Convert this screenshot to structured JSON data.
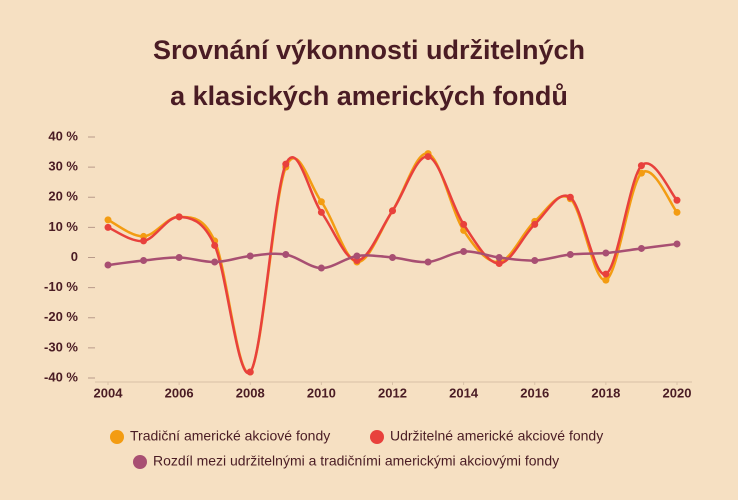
{
  "chart_data": {
    "type": "line",
    "title": [
      "Srovnání výkonnosti udržitelných",
      "a klasických amerických fondů"
    ],
    "x": [
      2004,
      2005,
      2006,
      2007,
      2008,
      2009,
      2010,
      2011,
      2012,
      2013,
      2014,
      2015,
      2016,
      2017,
      2018,
      2019,
      2020
    ],
    "xlim": [
      2004,
      2020
    ],
    "xticks": [
      2004,
      2006,
      2008,
      2010,
      2012,
      2014,
      2016,
      2018,
      2020
    ],
    "ylim": [
      -40,
      40
    ],
    "yticks": [
      {
        "value": -40,
        "label": "-40 %"
      },
      {
        "value": -30,
        "label": "-30 %"
      },
      {
        "value": -20,
        "label": "-20 %"
      },
      {
        "value": -10,
        "label": "-10 %"
      },
      0,
      {
        "value": 10,
        "label": "10 %"
      },
      {
        "value": 20,
        "label": "20 %"
      },
      {
        "value": 30,
        "label": "30 %"
      },
      {
        "value": 40,
        "label": "40 %"
      }
    ],
    "smooth": true,
    "series": [
      {
        "name": "Tradiční americké akciové fondy",
        "color": "#f39c12",
        "values": [
          12.5,
          7,
          13.5,
          5.5,
          -38,
          30,
          18.5,
          -1.5,
          15.5,
          34.5,
          9,
          -1.5,
          12,
          19.5,
          -7.5,
          28,
          15
        ]
      },
      {
        "name": "Udržitelné americké akciové fondy",
        "color": "#e8413c",
        "values": [
          10,
          5.5,
          13.5,
          4,
          -38,
          31,
          15,
          -1,
          15.5,
          33.5,
          11,
          -2,
          11,
          20,
          -5.5,
          30.5,
          19
        ]
      },
      {
        "name": "Rozdíl mezi udržitelnými a tradičními americkými akciovými fondy",
        "color": "#a84f72",
        "values": [
          -2.5,
          -1,
          0,
          -1.5,
          0.5,
          1,
          -3.5,
          0.5,
          0,
          -1.5,
          2,
          0,
          -1,
          1,
          1.5,
          3,
          4.5
        ]
      }
    ]
  }
}
